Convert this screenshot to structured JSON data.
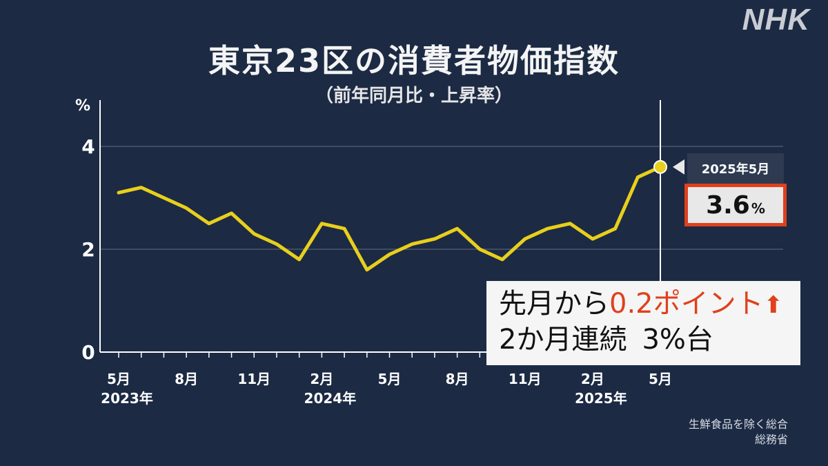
{
  "logo": "NHK",
  "source_note": [
    "生鮮食品を除く総合",
    "総務省"
  ],
  "callout": {
    "date": "2025年5月",
    "value": "3.6",
    "unit": "%"
  },
  "note": {
    "line1_prefix": "先月から",
    "line1_highlight": "0.2ポイント",
    "line1_arrow": "⬆",
    "line2_a": "2か月連続",
    "line2_b": "3%台"
  },
  "colors": {
    "background": "#1c2a44",
    "line": "#e8cf1c",
    "highlight": "#e0401c"
  },
  "chart_data": {
    "type": "line",
    "title": "東京23区の消費者物価指数",
    "subtitle": "（前年同月比・上昇率）",
    "ylabel": "%",
    "ylim": [
      0,
      4.9
    ],
    "yticks": [
      0,
      2,
      4
    ],
    "x": [
      "2023-05",
      "2023-06",
      "2023-07",
      "2023-08",
      "2023-09",
      "2023-10",
      "2023-11",
      "2023-12",
      "2024-01",
      "2024-02",
      "2024-03",
      "2024-04",
      "2024-05",
      "2024-06",
      "2024-07",
      "2024-08",
      "2024-09",
      "2024-10",
      "2024-11",
      "2024-12",
      "2025-01",
      "2025-02",
      "2025-03",
      "2025-04",
      "2025-05"
    ],
    "values": [
      3.1,
      3.2,
      3.0,
      2.8,
      2.5,
      2.7,
      2.3,
      2.1,
      1.8,
      2.5,
      2.4,
      1.6,
      1.9,
      2.1,
      2.2,
      2.4,
      2.0,
      1.8,
      2.2,
      2.4,
      2.5,
      2.2,
      2.4,
      3.4,
      3.6
    ],
    "xticks": [
      {
        "index": 0,
        "month": "5月",
        "year": "2023年"
      },
      {
        "index": 3,
        "month": "8月",
        "year": ""
      },
      {
        "index": 6,
        "month": "11月",
        "year": ""
      },
      {
        "index": 9,
        "month": "2月",
        "year": "2024年"
      },
      {
        "index": 12,
        "month": "5月",
        "year": ""
      },
      {
        "index": 15,
        "month": "8月",
        "year": ""
      },
      {
        "index": 18,
        "month": "11月",
        "year": ""
      },
      {
        "index": 21,
        "month": "2月",
        "year": "2025年"
      },
      {
        "index": 24,
        "month": "5月",
        "year": ""
      }
    ],
    "highlight_index": 24,
    "grid": true
  }
}
